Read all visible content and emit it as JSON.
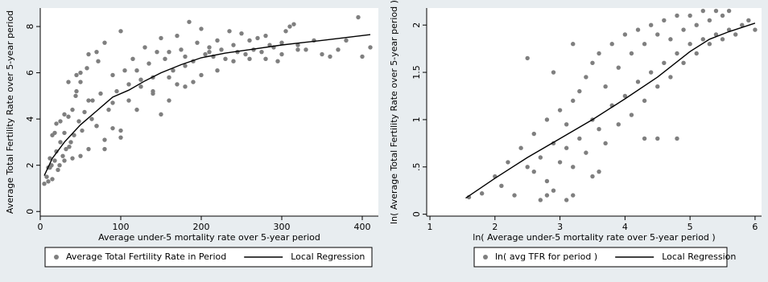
{
  "chart_data": [
    {
      "type": "scatter",
      "xlabel": "Average under-5 mortality rate over 5-year period",
      "ylabel": "Average Total Fertility Rate over 5-year period",
      "xlim": [
        0,
        420
      ],
      "ylim": [
        -0.2,
        8.8
      ],
      "xticks": [
        0,
        100,
        200,
        300,
        400
      ],
      "yticks": [
        0,
        2,
        4,
        6,
        8
      ],
      "xtick_labels": [
        "0",
        "100",
        "200",
        "300",
        "400"
      ],
      "ytick_labels": [
        "0",
        "2",
        "4",
        "6",
        "8"
      ],
      "grid": false,
      "legend_position": "bottom",
      "series": [
        {
          "name": "Average Total Fertility Rate in Period",
          "kind": "scatter",
          "color": "#7f7f7f",
          "x": [
            5,
            8,
            10,
            12,
            14,
            15,
            18,
            20,
            22,
            25,
            28,
            30,
            32,
            35,
            38,
            40,
            42,
            45,
            48,
            50,
            55,
            60,
            65,
            70,
            75,
            80,
            85,
            90,
            95,
            100,
            105,
            110,
            115,
            120,
            125,
            130,
            135,
            140,
            145,
            150,
            155,
            160,
            165,
            170,
            175,
            180,
            185,
            190,
            195,
            200,
            205,
            210,
            215,
            220,
            225,
            230,
            235,
            240,
            245,
            250,
            255,
            260,
            265,
            270,
            275,
            280,
            285,
            290,
            295,
            300,
            305,
            310,
            315,
            320,
            330,
            340,
            350,
            360,
            370,
            380,
            395,
            400,
            410,
            12,
            18,
            24,
            30,
            36,
            44,
            52,
            58,
            64,
            72,
            80,
            90,
            100,
            110,
            125,
            140,
            160,
            180,
            150,
            170,
            190,
            210,
            60,
            70,
            80,
            40,
            50,
            30,
            25,
            140,
            160,
            180,
            200,
            220,
            240,
            260,
            280,
            300,
            320,
            120,
            100,
            90,
            70,
            60,
            50,
            45,
            35,
            20,
            15,
            10
          ],
          "y": [
            1.2,
            1.5,
            1.3,
            1.9,
            2.0,
            1.4,
            2.2,
            2.6,
            1.8,
            3.0,
            2.4,
            3.4,
            2.7,
            4.1,
            3.0,
            4.4,
            3.3,
            5.2,
            3.9,
            6.0,
            4.3,
            6.8,
            4.8,
            6.9,
            5.1,
            7.3,
            4.4,
            5.9,
            5.2,
            7.8,
            6.1,
            5.5,
            6.6,
            6.1,
            5.7,
            7.1,
            6.4,
            5.8,
            6.9,
            7.5,
            6.6,
            6.9,
            6.1,
            7.6,
            7.0,
            6.7,
            8.2,
            6.5,
            7.3,
            7.9,
            6.8,
            7.1,
            6.7,
            7.4,
            7.0,
            6.6,
            7.8,
            7.2,
            6.9,
            7.7,
            6.8,
            7.4,
            7.0,
            7.5,
            6.9,
            7.6,
            7.2,
            7.1,
            6.5,
            7.3,
            7.8,
            8.0,
            8.1,
            7.2,
            7.0,
            7.4,
            6.8,
            6.7,
            7.0,
            7.4,
            8.4,
            6.7,
            7.1,
            2.3,
            3.4,
            2.0,
            4.2,
            2.8,
            5.0,
            3.5,
            6.2,
            4.0,
            6.5,
            3.1,
            4.7,
            3.5,
            4.8,
            5.4,
            5.1,
            5.8,
            6.3,
            4.2,
            5.5,
            5.6,
            6.9,
            2.7,
            3.7,
            2.7,
            2.3,
            2.4,
            2.2,
            3.9,
            5.2,
            4.8,
            5.4,
            5.9,
            6.1,
            6.5,
            6.6,
            6.6,
            6.8,
            7.0,
            4.4,
            3.2,
            3.6,
            3.7,
            4.8,
            5.6,
            5.9,
            5.6,
            3.8,
            3.3,
            1.9
          ]
        },
        {
          "name": "Local Regression",
          "kind": "line",
          "color": "#000000",
          "x": [
            5,
            15,
            30,
            50,
            70,
            90,
            110,
            130,
            150,
            175,
            200,
            230,
            260,
            300,
            350,
            410
          ],
          "y": [
            1.55,
            2.3,
            3.0,
            3.75,
            4.35,
            4.95,
            5.25,
            5.65,
            6.0,
            6.35,
            6.65,
            6.85,
            7.0,
            7.2,
            7.4,
            7.65
          ]
        }
      ]
    },
    {
      "type": "scatter",
      "xlabel": "ln( Average under-5 mortality rate over 5-year period )",
      "ylabel": "ln( Average Total Fertility Rate over 5-year period )",
      "xlim": [
        0.95,
        6.1
      ],
      "ylim": [
        -0.02,
        2.18
      ],
      "xticks": [
        1,
        2,
        3,
        4,
        5,
        6
      ],
      "yticks": [
        0,
        0.5,
        1,
        1.5,
        2
      ],
      "xtick_labels": [
        "1",
        "2",
        "3",
        "4",
        "5",
        "6"
      ],
      "ytick_labels": [
        "0",
        ".5",
        "1",
        "1.5",
        "2"
      ],
      "grid": false,
      "legend_position": "bottom",
      "series": [
        {
          "name": "ln( avg TFR for period )",
          "kind": "scatter",
          "color": "#7f7f7f",
          "x": [
            1.6,
            1.8,
            2.0,
            2.1,
            2.2,
            2.3,
            2.4,
            2.5,
            2.6,
            2.6,
            2.7,
            2.8,
            2.8,
            2.9,
            3.0,
            3.0,
            3.1,
            3.1,
            3.2,
            3.2,
            3.3,
            3.3,
            3.4,
            3.4,
            3.5,
            3.5,
            3.6,
            3.6,
            3.7,
            3.7,
            3.8,
            3.8,
            3.9,
            3.9,
            4.0,
            4.0,
            4.1,
            4.1,
            4.2,
            4.2,
            4.3,
            4.3,
            4.4,
            4.4,
            4.5,
            4.5,
            4.6,
            4.6,
            4.7,
            4.7,
            4.8,
            4.8,
            4.9,
            4.9,
            5.0,
            5.0,
            5.1,
            5.1,
            5.2,
            5.2,
            5.3,
            5.3,
            5.4,
            5.4,
            5.5,
            5.5,
            5.6,
            5.6,
            5.7,
            5.8,
            5.9,
            6.0,
            2.7,
            2.8,
            2.9,
            3.1,
            3.2,
            3.5,
            3.6,
            4.3,
            4.5,
            4.8,
            3.2,
            2.5,
            2.9
          ],
          "y": [
            0.18,
            0.22,
            0.4,
            0.3,
            0.55,
            0.2,
            0.7,
            0.5,
            0.85,
            0.45,
            0.6,
            1.0,
            0.35,
            0.75,
            1.1,
            0.55,
            0.95,
            0.7,
            1.2,
            0.5,
            0.8,
            1.3,
            0.65,
            1.45,
            1.0,
            1.6,
            0.9,
            1.7,
            0.75,
            1.35,
            1.15,
            1.8,
            0.95,
            1.55,
            1.25,
            1.9,
            1.05,
            1.7,
            1.4,
            1.95,
            1.2,
            1.8,
            1.5,
            2.0,
            1.35,
            1.9,
            1.6,
            2.05,
            1.45,
            1.85,
            1.7,
            2.1,
            1.6,
            1.95,
            1.8,
            2.1,
            1.7,
            2.0,
            1.85,
            2.15,
            1.8,
            2.05,
            1.9,
            2.15,
            1.85,
            2.1,
            1.95,
            2.15,
            1.9,
            2.0,
            2.05,
            1.95,
            0.15,
            0.2,
            0.25,
            0.15,
            0.2,
            0.4,
            0.45,
            0.8,
            0.8,
            0.8,
            1.8,
            1.65,
            1.5
          ]
        },
        {
          "name": "Local Regression",
          "kind": "line",
          "color": "#000000",
          "x": [
            1.55,
            2.0,
            2.5,
            3.0,
            3.5,
            4.0,
            4.5,
            5.0,
            5.3,
            5.6,
            6.0
          ],
          "y": [
            0.17,
            0.38,
            0.6,
            0.8,
            1.0,
            1.22,
            1.45,
            1.72,
            1.85,
            1.93,
            2.02
          ]
        }
      ]
    }
  ]
}
